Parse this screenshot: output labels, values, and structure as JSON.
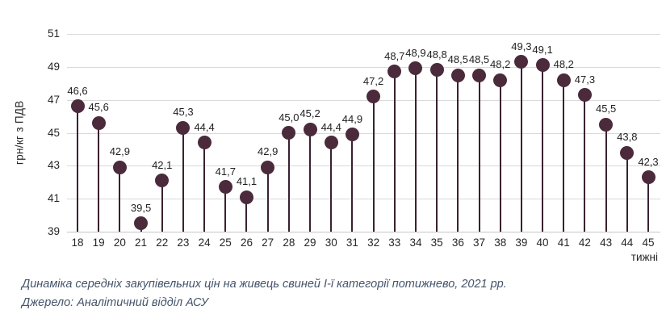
{
  "chart_data": {
    "type": "scatter",
    "variant": "lollipop-stem",
    "categories": [
      "18",
      "19",
      "20",
      "21",
      "22",
      "23",
      "24",
      "25",
      "26",
      "27",
      "28",
      "29",
      "30",
      "31",
      "32",
      "33",
      "34",
      "35",
      "36",
      "37",
      "38",
      "39",
      "40",
      "41",
      "42",
      "43",
      "44",
      "45"
    ],
    "values": [
      46.6,
      45.6,
      42.9,
      39.5,
      42.1,
      45.3,
      44.4,
      41.7,
      41.1,
      42.9,
      45.0,
      45.2,
      44.4,
      44.9,
      47.2,
      48.7,
      48.9,
      48.8,
      48.5,
      48.5,
      48.2,
      49.3,
      49.1,
      48.2,
      47.3,
      45.5,
      43.8,
      42.3
    ],
    "point_labels": [
      "46,6",
      "45,6",
      "42,9",
      "39,5",
      "42,1",
      "45,3",
      "44,4",
      "41,7",
      "41,1",
      "42,9",
      "45,0",
      "45,2",
      "44,4",
      "44,9",
      "47,2",
      "48,7",
      "48,9",
      "48,8",
      "48,5",
      "48,5",
      "48,2",
      "49,3",
      "49,1",
      "48,2",
      "47,3",
      "45,5",
      "43,8",
      "42,3"
    ],
    "ylabel": "грн/кг з ПДВ",
    "xlabel": "тижні",
    "ylim": [
      39,
      51
    ],
    "yticks": [
      39,
      41,
      43,
      45,
      47,
      49,
      51
    ],
    "grid": true,
    "legend": "none",
    "decimal_separator": ",",
    "marker_color": "#4a2a3b",
    "stem_color": "#3a2130",
    "gridline_color": "#d9d9d9"
  },
  "caption": {
    "line1": "Динаміка середніх закупівельних цін на живець свиней І-ї категорії потижнево, 2021 рр.",
    "line2": "Джерело: Аналітичний відділ АСУ"
  }
}
